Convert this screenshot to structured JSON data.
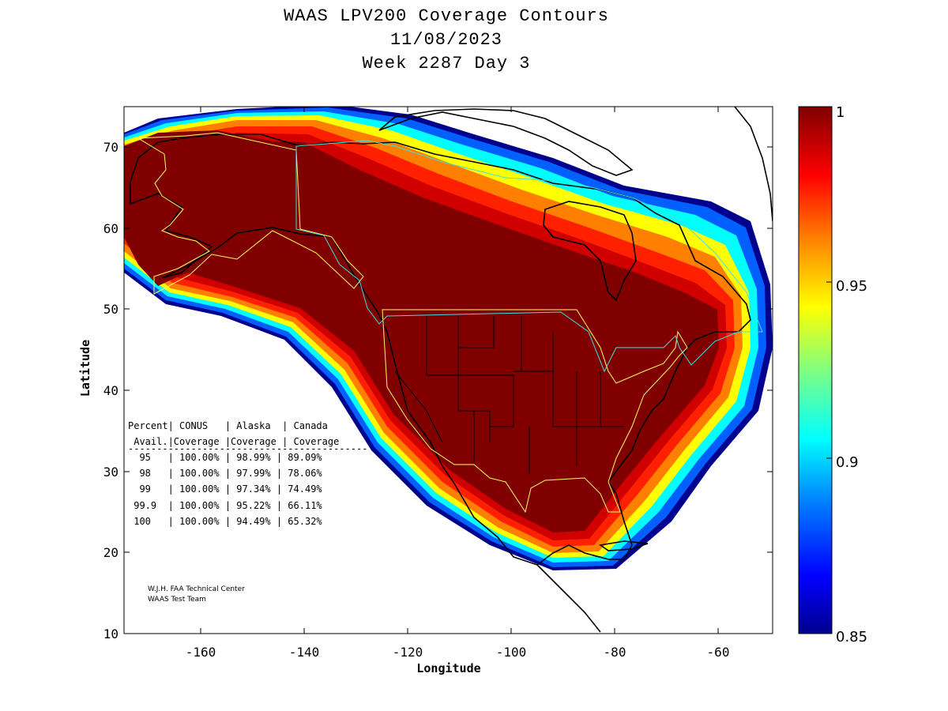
{
  "title": {
    "line1": "WAAS LPV200 Coverage Contours",
    "line2": "11/08/2023",
    "line3": "Week 2287 Day 3"
  },
  "axes": {
    "xlabel": "Longitude",
    "ylabel": "Latitude",
    "xticks": [
      "-160",
      "-140",
      "-120",
      "-100",
      "-80",
      "-60"
    ],
    "yticks": [
      "10",
      "20",
      "30",
      "40",
      "50",
      "60",
      "70"
    ],
    "xlim": [
      -175,
      -50
    ],
    "ylim": [
      10,
      75
    ]
  },
  "colorbar": {
    "ticks": [
      "1",
      "0.95",
      "0.9",
      "0.85"
    ],
    "range": [
      0.85,
      1.0
    ],
    "colormap": [
      "#00008f",
      "#0000ff",
      "#0080ff",
      "#00ffff",
      "#80ff80",
      "#ffff00",
      "#ff8000",
      "#ff0000",
      "#800000"
    ]
  },
  "table": {
    "header1": "Percent| CONUS   | Alaska  | Canada",
    "header2": " Avail.|Coverage |Coverage | Coverage",
    "divider": "------------------------------------------",
    "rows": [
      "  95   | 100.00% | 98.99% | 89.09%",
      "  98   | 100.00% | 97.99% | 78.06%",
      "  99   | 100.00% | 97.34% | 74.49%",
      " 99.9  | 100.00% | 95.22% | 66.11%",
      " 100   | 100.00% | 94.49% | 65.32%"
    ]
  },
  "credits": {
    "line1": "W.J.H. FAA Technical Center",
    "line2": "WAAS Test Team"
  },
  "chart_data": {
    "type": "heatmap",
    "title": "WAAS LPV200 Coverage Contours",
    "subtitle": [
      "11/08/2023",
      "Week 2287 Day 3"
    ],
    "xlabel": "Longitude",
    "ylabel": "Latitude",
    "xlim": [
      -175,
      -50
    ],
    "ylim": [
      10,
      75
    ],
    "color_range": [
      0.85,
      1.0
    ],
    "coverage_table": {
      "columns": [
        "Percent Avail.",
        "CONUS Coverage",
        "Alaska Coverage",
        "Canada Coverage"
      ],
      "rows": [
        [
          "95",
          "100.00%",
          "98.99%",
          "89.09%"
        ],
        [
          "98",
          "100.00%",
          "97.99%",
          "78.06%"
        ],
        [
          "99",
          "100.00%",
          "97.34%",
          "74.49%"
        ],
        [
          "99.9",
          "100.00%",
          "95.22%",
          "66.11%"
        ],
        [
          "100",
          "100.00%",
          "94.49%",
          "65.32%"
        ]
      ]
    }
  }
}
